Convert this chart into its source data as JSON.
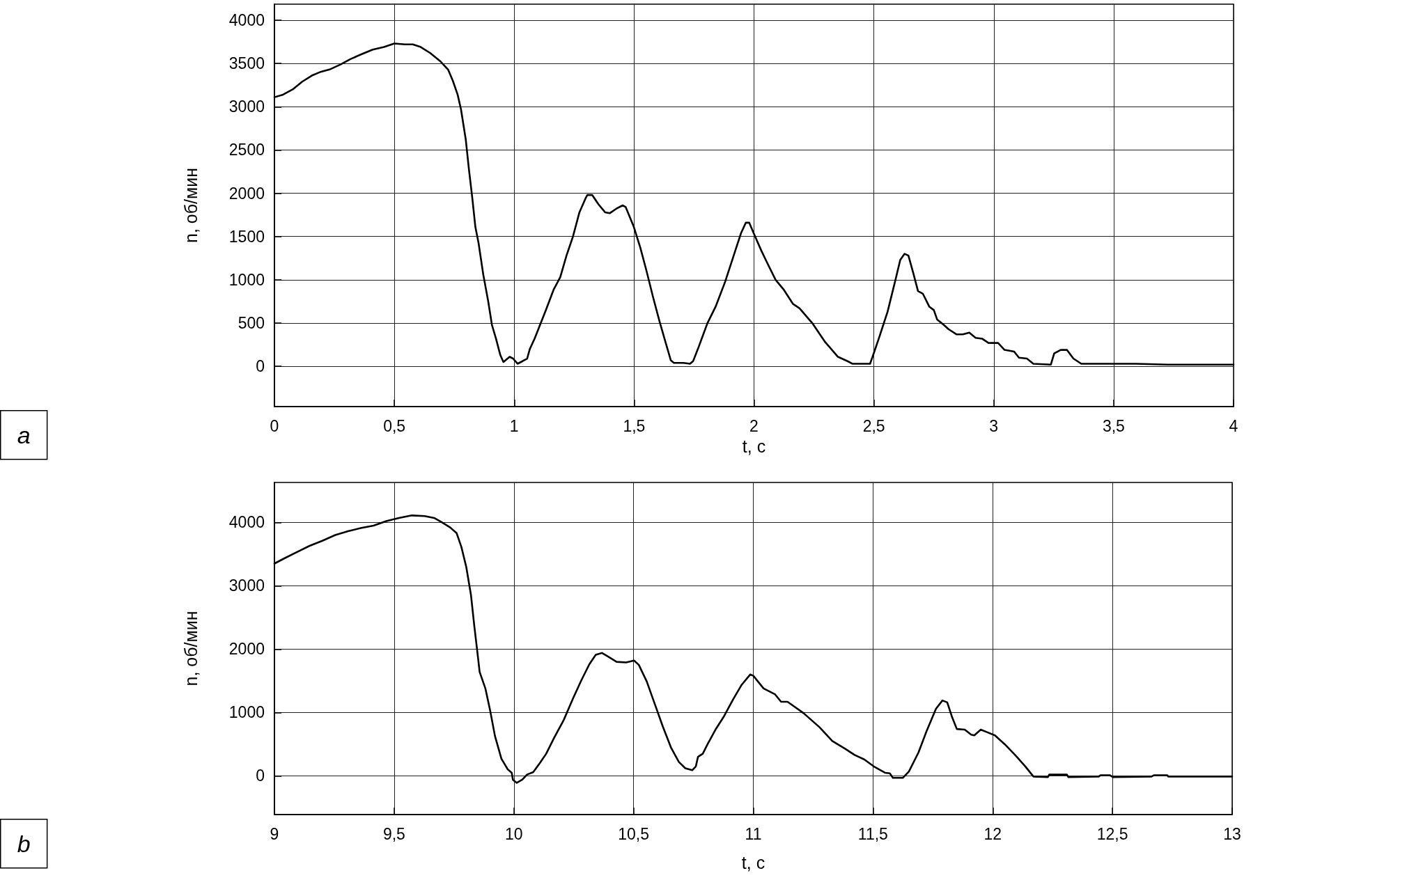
{
  "chart_data": [
    {
      "type": "line",
      "annotations": [
        "a"
      ],
      "xlabel": "t, с",
      "ylabel": "n, об/мин",
      "color": "#000000",
      "grid": true,
      "xlim": [
        0,
        4
      ],
      "xticks": [
        0,
        {
          "value": 0.5,
          "label": "0,5"
        },
        1,
        {
          "value": 1.5,
          "label": "1,5"
        },
        2,
        {
          "value": 2.5,
          "label": "2,5"
        },
        3,
        {
          "value": 3.5,
          "label": "3,5"
        },
        4
      ],
      "ylim": [
        -465,
        4185
      ],
      "yticks": [
        0,
        500,
        1000,
        1500,
        2000,
        2500,
        3000,
        3500,
        4000
      ],
      "x": [
        0,
        0.036,
        0.076,
        0.116,
        0.156,
        0.19,
        0.23,
        0.277,
        0.317,
        0.357,
        0.41,
        0.457,
        0.5,
        0.544,
        0.577,
        0.61,
        0.65,
        0.69,
        0.724,
        0.744,
        0.764,
        0.778,
        0.798,
        0.811,
        0.825,
        0.838,
        0.851,
        0.871,
        0.891,
        0.907,
        0.924,
        0.942,
        0.955,
        0.981,
        0.995,
        1.014,
        1.035,
        1.054,
        1.065,
        1.085,
        1.105,
        1.132,
        1.165,
        1.192,
        1.218,
        1.245,
        1.272,
        1.299,
        1.305,
        1.325,
        1.352,
        1.379,
        1.399,
        1.425,
        1.452,
        1.465,
        1.499,
        1.526,
        1.552,
        1.579,
        1.606,
        1.633,
        1.653,
        1.666,
        1.706,
        1.733,
        1.746,
        1.766,
        1.806,
        1.84,
        1.88,
        1.92,
        1.946,
        1.966,
        1.98,
        2.0,
        2.03,
        2.056,
        2.09,
        2.123,
        2.163,
        2.19,
        2.243,
        2.297,
        2.35,
        2.39,
        2.41,
        2.484,
        2.497,
        2.524,
        2.557,
        2.59,
        2.61,
        2.628,
        2.644,
        2.664,
        2.684,
        2.704,
        2.731,
        2.75,
        2.764,
        2.791,
        2.811,
        2.844,
        2.871,
        2.898,
        2.924,
        2.951,
        2.978,
        3.018,
        3.045,
        3.085,
        3.105,
        3.138,
        3.165,
        3.238,
        3.252,
        3.279,
        3.305,
        3.332,
        3.365,
        3.419,
        3.459,
        3.593,
        3.726,
        3.86,
        4.0
      ],
      "values": [
        3110,
        3140,
        3200,
        3290,
        3360,
        3400,
        3430,
        3490,
        3550,
        3600,
        3660,
        3690,
        3730,
        3720,
        3720,
        3690,
        3620,
        3530,
        3430,
        3300,
        3140,
        2970,
        2620,
        2280,
        1950,
        1610,
        1430,
        1060,
        760,
        480,
        320,
        130,
        50,
        110,
        90,
        30,
        60,
        90,
        200,
        320,
        460,
        650,
        890,
        1030,
        1280,
        1500,
        1780,
        1950,
        1980,
        1980,
        1870,
        1780,
        1770,
        1820,
        1860,
        1840,
        1610,
        1370,
        1100,
        800,
        520,
        260,
        70,
        40,
        40,
        30,
        60,
        200,
        500,
        690,
        980,
        1320,
        1540,
        1660,
        1660,
        1530,
        1340,
        1190,
        1000,
        890,
        720,
        670,
        500,
        280,
        110,
        60,
        30,
        30,
        130,
        350,
        630,
        1000,
        1230,
        1300,
        1280,
        1080,
        870,
        840,
        690,
        650,
        540,
        480,
        430,
        370,
        370,
        390,
        330,
        320,
        270,
        270,
        190,
        170,
        100,
        90,
        30,
        20,
        150,
        190,
        190,
        90,
        30,
        30,
        30,
        30,
        20,
        20,
        20
      ]
    },
    {
      "type": "line",
      "annotations": [
        "b"
      ],
      "xlabel": "t, с",
      "ylabel": "n, об/мин",
      "color": "#000000",
      "grid": true,
      "xlim": [
        9,
        13
      ],
      "xticks": [
        9,
        {
          "value": 9.5,
          "label": "9,5"
        },
        10,
        {
          "value": 10.5,
          "label": "10,5"
        },
        11,
        {
          "value": 11.5,
          "label": "11,5"
        },
        12,
        {
          "value": 12.5,
          "label": "12,5"
        },
        13
      ],
      "ylim": [
        -610,
        4630
      ],
      "yticks": [
        0,
        1000,
        2000,
        3000,
        4000
      ],
      "x": [
        9,
        9.04,
        9.093,
        9.147,
        9.2,
        9.254,
        9.307,
        9.36,
        9.414,
        9.467,
        9.52,
        9.574,
        9.627,
        9.667,
        9.7,
        9.734,
        9.761,
        9.781,
        9.801,
        9.821,
        9.834,
        9.848,
        9.857,
        9.881,
        9.901,
        9.921,
        9.948,
        9.975,
        9.991,
        9.996,
        10.012,
        10.035,
        10.055,
        10.081,
        10.108,
        10.135,
        10.168,
        10.208,
        10.248,
        10.282,
        10.315,
        10.342,
        10.368,
        10.395,
        10.429,
        10.469,
        10.502,
        10.522,
        10.555,
        10.589,
        10.622,
        10.656,
        10.689,
        10.716,
        10.745,
        10.76,
        10.769,
        10.789,
        10.809,
        10.842,
        10.876,
        10.916,
        10.95,
        10.987,
        11.0,
        11.043,
        11.09,
        11.116,
        11.143,
        11.21,
        11.276,
        11.33,
        11.383,
        11.423,
        11.463,
        11.503,
        11.55,
        11.57,
        11.583,
        11.625,
        11.65,
        11.69,
        11.723,
        11.763,
        11.79,
        11.81,
        11.83,
        11.85,
        11.883,
        11.91,
        11.923,
        11.95,
        11.976,
        12.009,
        12.05,
        12.096,
        12.136,
        12.17,
        12.23,
        12.236,
        12.31,
        12.316,
        12.443,
        12.45,
        12.49,
        12.503,
        12.663,
        12.673,
        12.729,
        12.733,
        13
      ],
      "values": [
        3350,
        3430,
        3530,
        3630,
        3710,
        3800,
        3860,
        3910,
        3950,
        4020,
        4070,
        4110,
        4100,
        4070,
        4000,
        3920,
        3830,
        3610,
        3300,
        2850,
        2390,
        1940,
        1640,
        1380,
        1030,
        630,
        270,
        100,
        50,
        -60,
        -110,
        -60,
        20,
        60,
        200,
        350,
        600,
        880,
        1230,
        1510,
        1760,
        1910,
        1940,
        1880,
        1800,
        1790,
        1820,
        1750,
        1490,
        1130,
        780,
        450,
        220,
        120,
        90,
        150,
        300,
        350,
        500,
        730,
        930,
        1210,
        1430,
        1600,
        1580,
        1380,
        1290,
        1170,
        1170,
        990,
        770,
        550,
        430,
        330,
        260,
        150,
        50,
        40,
        -30,
        -30,
        70,
        370,
        700,
        1060,
        1190,
        1160,
        930,
        740,
        730,
        650,
        640,
        730,
        690,
        640,
        500,
        320,
        150,
        -10,
        -20,
        20,
        20,
        -20,
        -10,
        10,
        10,
        -20,
        -10,
        10,
        10,
        -10,
        -10
      ]
    }
  ]
}
